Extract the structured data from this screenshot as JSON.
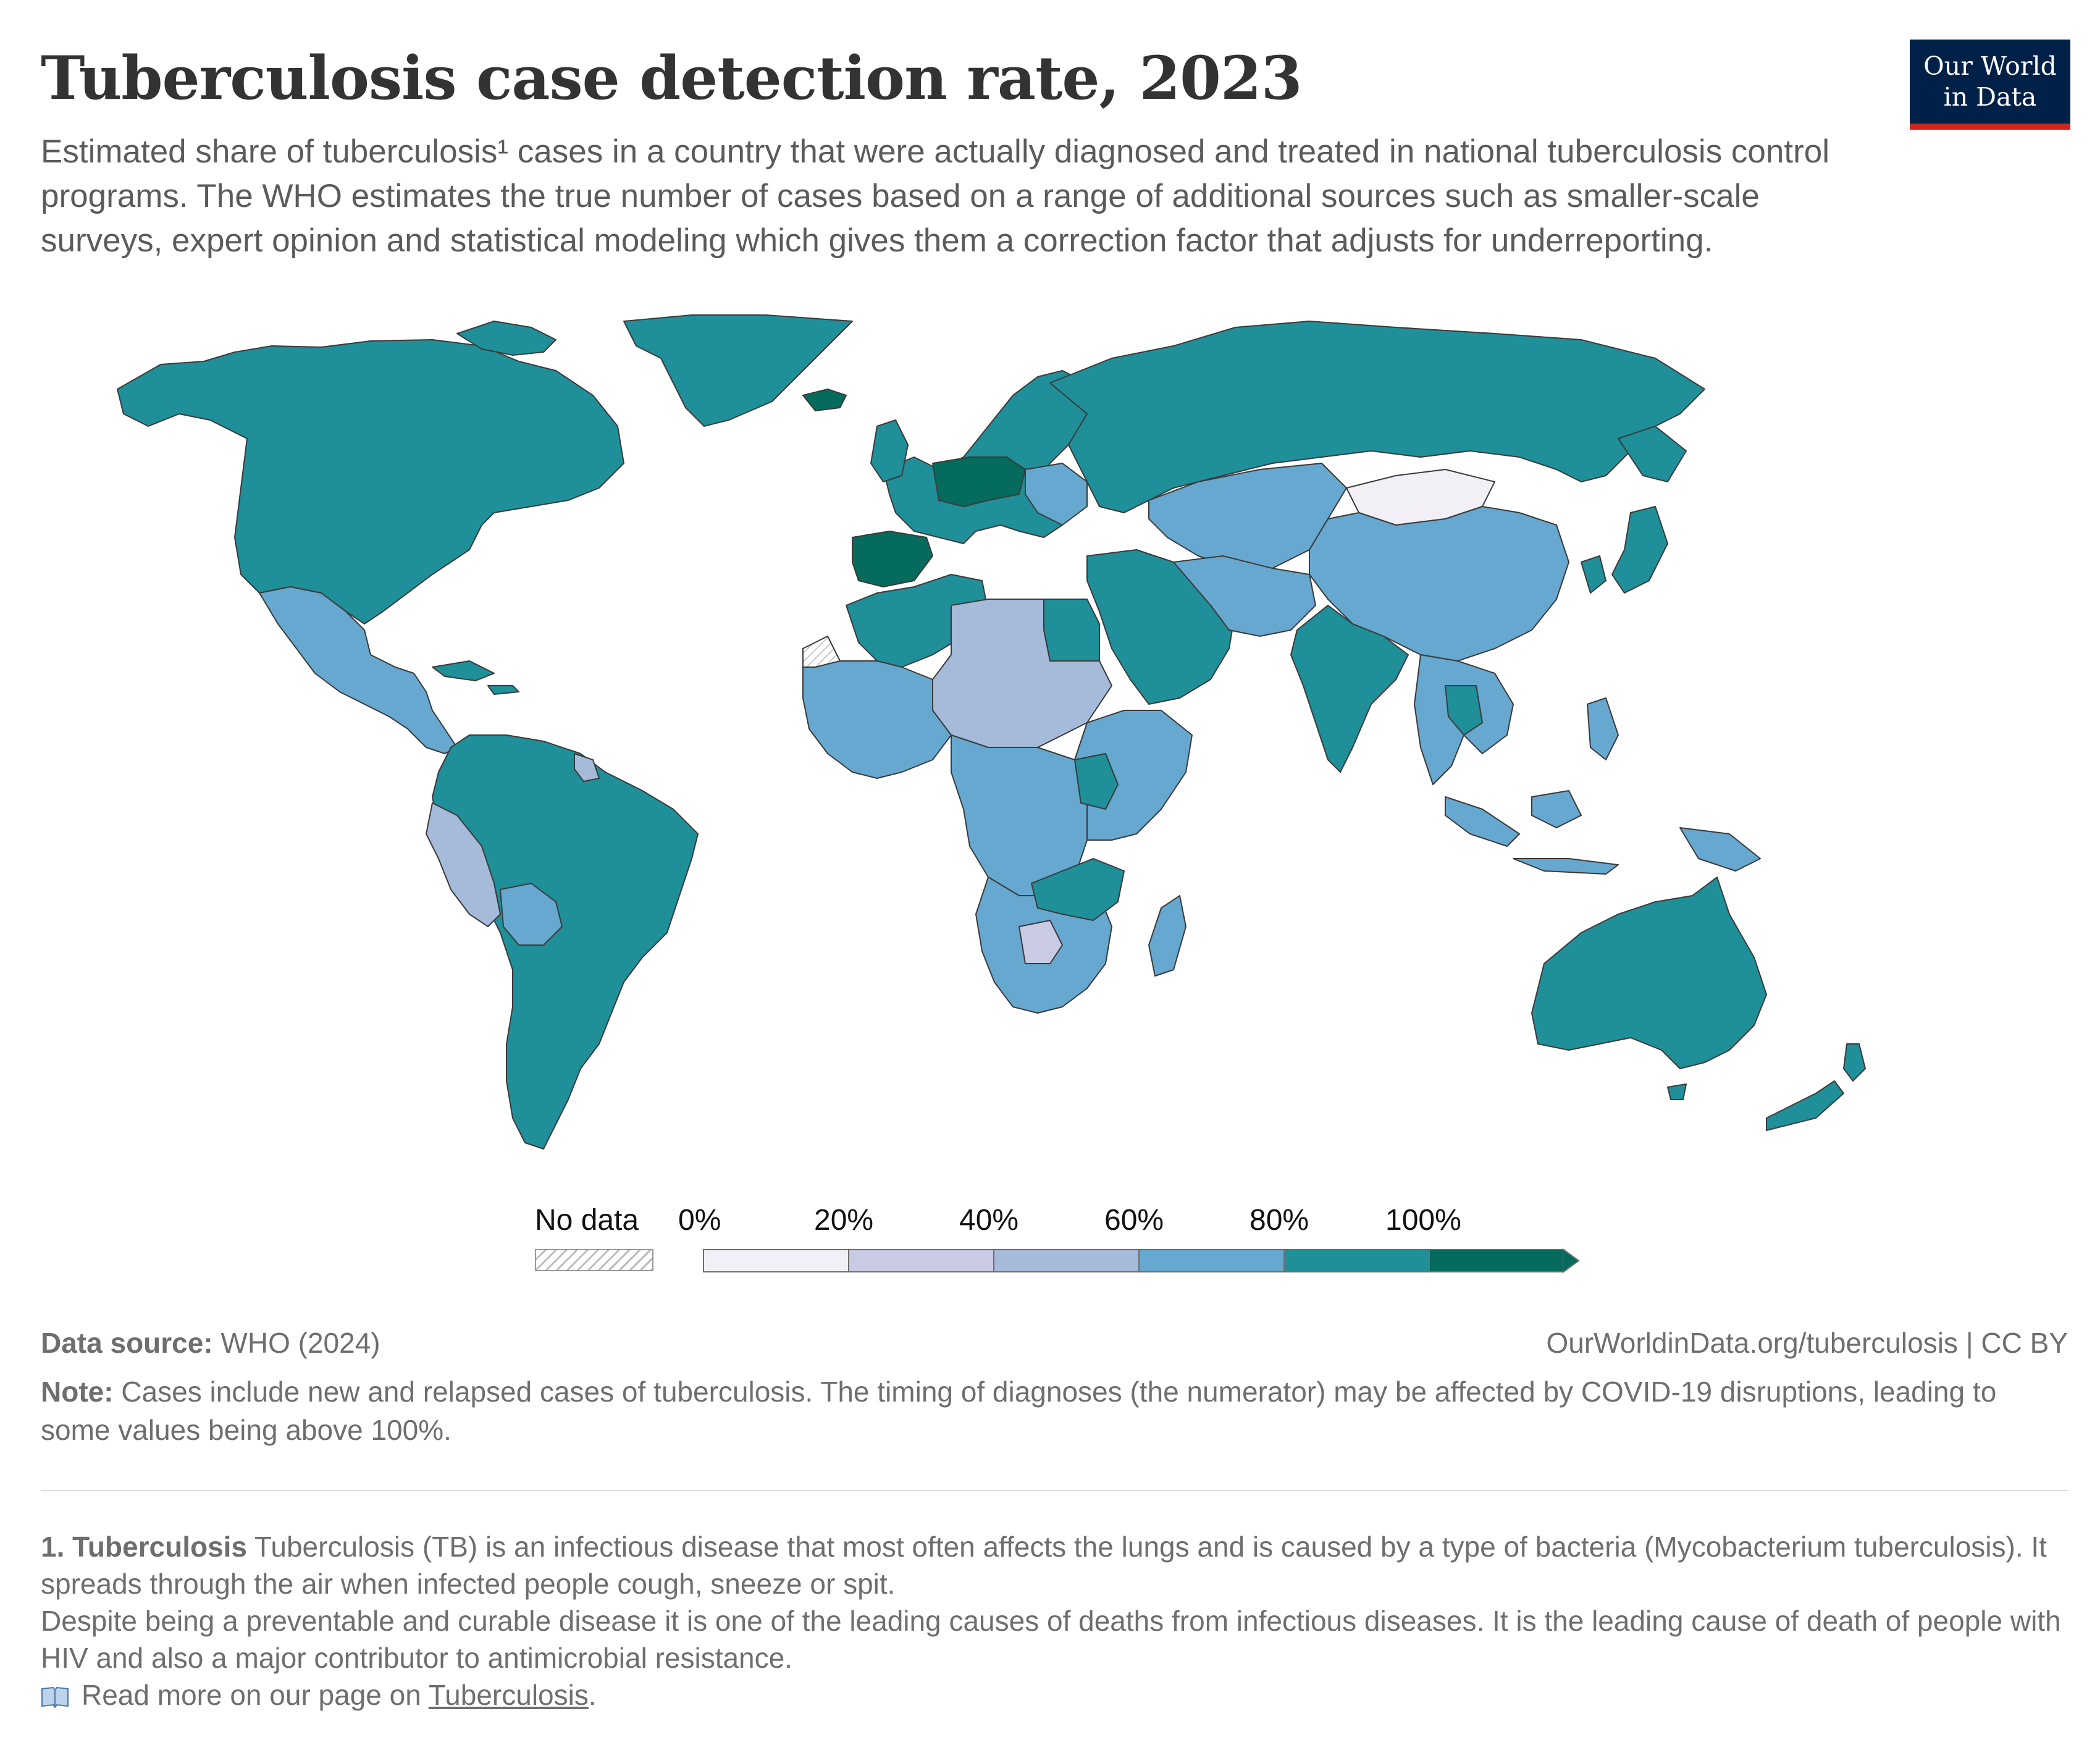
{
  "header": {
    "title": "Tuberculosis case detection rate, 2023",
    "subtitle": "Estimated share of tuberculosis¹ cases in a country that were actually diagnosed and treated in national tuberculosis control programs. The WHO estimates the true number of cases based on a range of additional sources such as smaller-scale surveys, expert opinion and statistical modeling which gives them a correction factor that adjusts for underreporting.",
    "logo_line1": "Our World",
    "logo_line2": "in Data"
  },
  "legend": {
    "no_data_label": "No data",
    "ticks": [
      "0%",
      "20%",
      "40%",
      "60%",
      "80%",
      "100%"
    ],
    "bins": [
      {
        "range": "0–20%",
        "color": "#f2eff7"
      },
      {
        "range": "20–40%",
        "color": "#c9cae3"
      },
      {
        "range": "40–60%",
        "color": "#a6bad9"
      },
      {
        "range": "60–80%",
        "color": "#66a8cf"
      },
      {
        "range": "80–100%",
        "color": "#1f8f99"
      },
      {
        "range": ">100%",
        "color": "#046b5d"
      }
    ]
  },
  "map": {
    "projection": "Robinson world map",
    "regions": [
      {
        "name": "North America",
        "bin": "80–100%"
      },
      {
        "name": "Greenland",
        "bin": "80–100%"
      },
      {
        "name": "Mexico & Central America",
        "bin": "60–80%"
      },
      {
        "name": "South America",
        "bin": "80–100%"
      },
      {
        "name": "Peru",
        "bin": "40–60%"
      },
      {
        "name": "Bolivia",
        "bin": "60–80%"
      },
      {
        "name": "Western Europe",
        "bin": "80–100%"
      },
      {
        "name": "Spain",
        "bin": ">100%"
      },
      {
        "name": "Germany & Poland",
        "bin": ">100%"
      },
      {
        "name": "Russia",
        "bin": "80–100%"
      },
      {
        "name": "Mongolia",
        "bin": "0–20%"
      },
      {
        "name": "China",
        "bin": "60–80%"
      },
      {
        "name": "India",
        "bin": "80–100%"
      },
      {
        "name": "Central Asia",
        "bin": "60–80%"
      },
      {
        "name": "Middle East",
        "bin": "80–100%"
      },
      {
        "name": "North Africa",
        "bin": "80–100%"
      },
      {
        "name": "Sahel",
        "bin": "40–60%"
      },
      {
        "name": "West Africa",
        "bin": "60–80%"
      },
      {
        "name": "Central Africa",
        "bin": "60–80%"
      },
      {
        "name": "East Africa",
        "bin": "60–80%"
      },
      {
        "name": "Southern Africa",
        "bin": "60–80%"
      },
      {
        "name": "Botswana",
        "bin": "20–40%"
      },
      {
        "name": "Mozambique & Zambia",
        "bin": "80–100%"
      },
      {
        "name": "Madagascar",
        "bin": "60–80%"
      },
      {
        "name": "Southeast Asia",
        "bin": "60–80%"
      },
      {
        "name": "Indonesia",
        "bin": "60–80%"
      },
      {
        "name": "Japan & Korea",
        "bin": "80–100%"
      },
      {
        "name": "Australia",
        "bin": "80–100%"
      },
      {
        "name": "New Zealand",
        "bin": "80–100%"
      }
    ]
  },
  "footer": {
    "source_label": "Data source:",
    "source_value": " WHO (2024)",
    "url": "OurWorldinData.org/tuberculosis | CC BY",
    "note_label": "Note:",
    "note_text": " Cases include new and relapsed cases of tuberculosis. The timing of diagnoses (the numerator) may be affected by COVID-19 disruptions, leading to some values being above 100%.",
    "footnote_label": "1. Tuberculosis",
    "footnote_text1": " Tuberculosis (TB) is an infectious disease that most often affects the lungs and is caused by a type of bacteria (Mycobacterium tuberculosis). It spreads through the air when infected people cough, sneeze or spit.",
    "footnote_text2": "Despite being a preventable and curable disease it is one of the leading causes of deaths from infectious diseases. It is the leading cause of death of people with HIV and also a major contributor to antimicrobial resistance.",
    "readmore_prefix": "Read more on our page on ",
    "readmore_link": "Tuberculosis",
    "readmore_suffix": "."
  },
  "colors": {
    "ocean": "#ffffff",
    "border": "#3a3a3a",
    "logo_bg": "#002147",
    "logo_accent": "#ce261e"
  },
  "icons": {
    "read_more": "book-icon"
  }
}
